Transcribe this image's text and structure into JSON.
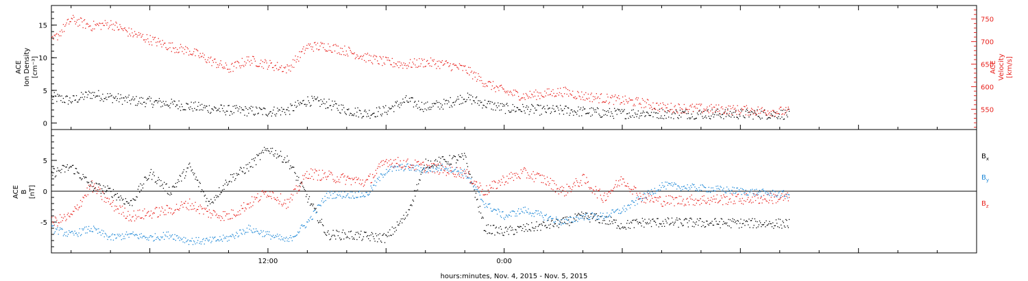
{
  "colors": {
    "black": "#000000",
    "red": "#e8201c",
    "blue": "#1a86d6"
  },
  "x_axis": {
    "label": "hours:minutes, Nov.  4, 2015 - Nov.  5, 2015",
    "tick_labels": [
      {
        "hour": 12,
        "label": "12:00"
      },
      {
        "hour": 24,
        "label": "0:00"
      }
    ],
    "range_hours": [
      1.0,
      48.0
    ]
  },
  "chart_data": [
    {
      "type": "scatter",
      "panel": "top",
      "ylabel_left": [
        "ACE",
        "Ion Density",
        "[cm⁻³]"
      ],
      "ylabel_right": [
        "ACE",
        "Velocity",
        "[km/s]"
      ],
      "yticks_left": [
        0,
        5,
        10,
        15
      ],
      "yticks_right": [
        550,
        600,
        650,
        700,
        750
      ],
      "ylim_left": [
        -1,
        18
      ],
      "ylim_right": [
        505,
        780
      ],
      "series": [
        {
          "axis": "left",
          "color": "#000000",
          "x": [
            1.0,
            2.0,
            3.0,
            4.0,
            5.0,
            6.0,
            7.0,
            8.0,
            9.0,
            10.0,
            11.0,
            12.0,
            13.0,
            14.0,
            15.0,
            16.0,
            17.0,
            18.0,
            19.0,
            20.0,
            21.0,
            22.0,
            23.0,
            24.0,
            25.0,
            26.0,
            27.0,
            28.0,
            29.0,
            30.0,
            31.0,
            32.0,
            38.5
          ],
          "y": [
            4.0,
            3.5,
            4.5,
            4.0,
            3.5,
            3.3,
            3.0,
            2.6,
            2.3,
            2.0,
            1.9,
            1.8,
            2.0,
            3.5,
            3.0,
            2.0,
            1.5,
            2.0,
            3.5,
            2.5,
            3.0,
            4.0,
            3.0,
            2.3,
            2.2,
            2.0,
            2.0,
            1.8,
            1.6,
            1.5,
            1.6,
            1.5,
            1.4
          ]
        },
        {
          "axis": "right",
          "color": "#e8201c",
          "x": [
            1.0,
            2.0,
            3.0,
            4.0,
            5.0,
            6.0,
            7.0,
            8.0,
            9.0,
            10.0,
            11.0,
            12.0,
            13.0,
            14.0,
            15.0,
            16.0,
            17.0,
            18.0,
            19.0,
            20.0,
            21.0,
            22.0,
            23.0,
            24.0,
            25.0,
            26.0,
            27.0,
            28.0,
            29.0,
            30.0,
            31.0,
            32.0,
            38.5
          ],
          "y": [
            700,
            750,
            735,
            740,
            720,
            705,
            690,
            680,
            660,
            640,
            660,
            650,
            640,
            690,
            690,
            680,
            665,
            655,
            650,
            655,
            650,
            640,
            610,
            590,
            580,
            585,
            590,
            580,
            575,
            570,
            565,
            555,
            545
          ]
        }
      ]
    },
    {
      "type": "scatter",
      "panel": "bottom",
      "ylabel_left": [
        "ACE",
        "B",
        "[nT]"
      ],
      "yticks_left": [
        -5,
        0,
        5
      ],
      "ylim": [
        -10,
        10
      ],
      "zero_line": true,
      "legend_placement": "right",
      "series": [
        {
          "name": "B",
          "subscript": "x",
          "color": "#000000",
          "x": [
            1.0,
            2.0,
            3.0,
            4.0,
            5.0,
            6.0,
            7.0,
            8.0,
            9.0,
            10.0,
            11.0,
            12.0,
            13.0,
            14.0,
            15.0,
            16.0,
            17.0,
            18.0,
            19.0,
            20.0,
            21.0,
            22.0,
            23.0,
            24.0,
            25.0,
            26.0,
            27.0,
            28.0,
            29.0,
            30.0,
            31.0,
            32.0,
            38.5
          ],
          "y": [
            3.0,
            4.0,
            1.0,
            0.0,
            -2.0,
            3.0,
            0.0,
            4.0,
            -2.0,
            2.0,
            4.0,
            7.0,
            5.0,
            -1.0,
            -7.0,
            -7.0,
            -7.3,
            -7.5,
            -4.0,
            4.5,
            5.0,
            5.5,
            -6.0,
            -6.5,
            -6.0,
            -5.5,
            -5.0,
            -4.0,
            -4.5,
            -5.5,
            -5.0,
            -5.0,
            -5.2
          ]
        },
        {
          "name": "B",
          "subscript": "y",
          "color": "#1a86d6",
          "x": [
            1.0,
            2.0,
            3.0,
            4.0,
            5.0,
            6.0,
            7.0,
            8.0,
            9.0,
            10.0,
            11.0,
            12.0,
            13.0,
            14.0,
            15.0,
            16.0,
            17.0,
            18.0,
            19.0,
            20.0,
            21.0,
            22.0,
            23.0,
            24.0,
            25.0,
            26.0,
            27.0,
            28.0,
            29.0,
            30.0,
            31.0,
            32.0,
            38.5
          ],
          "y": [
            -6.0,
            -7.0,
            -6.0,
            -7.5,
            -7.0,
            -7.5,
            -7.0,
            -8.0,
            -8.0,
            -7.5,
            -6.0,
            -7.0,
            -8.0,
            -5.0,
            -0.5,
            -0.5,
            -0.5,
            3.5,
            4.0,
            3.5,
            4.0,
            3.0,
            -2.0,
            -4.0,
            -3.0,
            -4.0,
            -5.0,
            -4.0,
            -4.0,
            -3.0,
            -1.0,
            1.0,
            -0.5
          ]
        },
        {
          "name": "B",
          "subscript": "z",
          "color": "#e8201c",
          "x": [
            1.0,
            2.0,
            3.0,
            4.0,
            5.0,
            6.0,
            7.0,
            8.0,
            9.0,
            10.0,
            11.0,
            12.0,
            13.0,
            14.0,
            15.0,
            16.0,
            17.0,
            18.0,
            19.0,
            20.0,
            21.0,
            22.0,
            23.0,
            24.0,
            25.0,
            26.0,
            27.0,
            28.0,
            29.0,
            30.0,
            31.0,
            32.0,
            38.5
          ],
          "y": [
            -5.0,
            -4.0,
            1.0,
            -2.0,
            -4.0,
            -3.5,
            -3.0,
            -2.0,
            -3.5,
            -4.0,
            -2.0,
            0.0,
            -2.0,
            3.0,
            2.5,
            2.0,
            1.5,
            5.0,
            4.5,
            4.0,
            3.5,
            3.0,
            0.0,
            2.0,
            3.0,
            2.0,
            0.0,
            2.0,
            -1.0,
            2.0,
            -1.0,
            -1.5,
            -1.0
          ]
        }
      ]
    }
  ]
}
